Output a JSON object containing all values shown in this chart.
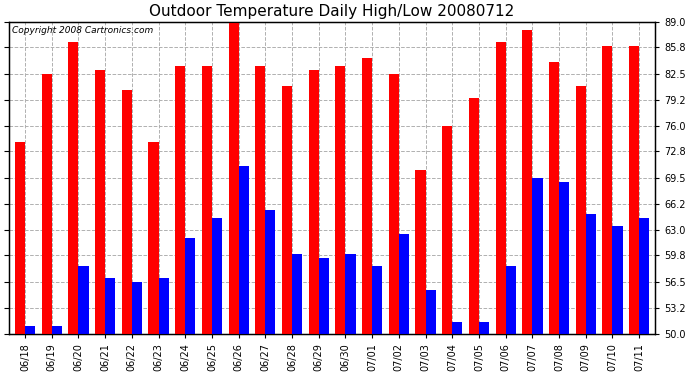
{
  "title": "Outdoor Temperature Daily High/Low 20080712",
  "copyright": "Copyright 2008 Cartronics.com",
  "categories": [
    "06/18",
    "06/19",
    "06/20",
    "06/21",
    "06/22",
    "06/23",
    "06/24",
    "06/25",
    "06/26",
    "06/27",
    "06/28",
    "06/29",
    "06/30",
    "07/01",
    "07/02",
    "07/03",
    "07/04",
    "07/05",
    "07/06",
    "07/07",
    "07/08",
    "07/09",
    "07/10",
    "07/11"
  ],
  "highs": [
    74.0,
    82.5,
    86.5,
    83.0,
    80.5,
    74.0,
    83.5,
    83.5,
    89.0,
    83.5,
    81.0,
    83.0,
    83.5,
    84.5,
    82.5,
    70.5,
    76.0,
    79.5,
    86.5,
    88.0,
    84.0,
    81.0,
    86.0,
    86.0
  ],
  "lows": [
    51.0,
    51.0,
    58.5,
    57.0,
    56.5,
    57.0,
    62.0,
    64.5,
    71.0,
    65.5,
    60.0,
    59.5,
    60.0,
    58.5,
    62.5,
    55.5,
    51.5,
    51.5,
    58.5,
    69.5,
    69.0,
    65.0,
    63.5,
    64.5
  ],
  "high_color": "#ff0000",
  "low_color": "#0000ff",
  "bg_color": "#ffffff",
  "plot_bg_color": "#ffffff",
  "grid_color": "#b0b0b0",
  "ylim_min": 50.0,
  "ylim_max": 89.0,
  "yticks": [
    50.0,
    53.2,
    56.5,
    59.8,
    63.0,
    66.2,
    69.5,
    72.8,
    76.0,
    79.2,
    82.5,
    85.8,
    89.0
  ],
  "bar_width": 0.38,
  "title_fontsize": 11,
  "copyright_fontsize": 6.5,
  "tick_fontsize": 7
}
